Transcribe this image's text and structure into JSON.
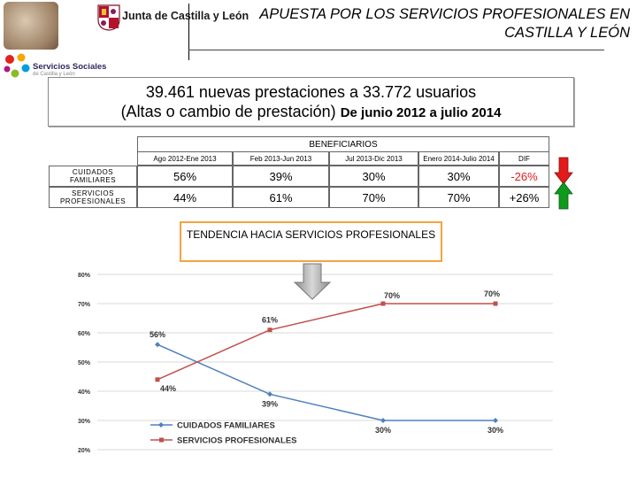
{
  "header": {
    "org_name": "Junta de Castilla y León",
    "title": "APUESTA POR LOS SERVICIOS PROFESIONALES EN CASTILLA Y LEÓN",
    "social_services_label": "Servicios Sociales",
    "social_services_sub": "de Castilla y León"
  },
  "headline": {
    "line1": "39.461 nuevas prestaciones a 33.772 usuarios",
    "line2_main": "(Altas o cambio de prestación) ",
    "line2_period": "De junio 2012 a julio 2014"
  },
  "table": {
    "group_header": "BENEFICIARIOS",
    "columns": [
      "Ago 2012-Ene 2013",
      "Feb 2013-Jun 2013",
      "Jul 2013-Dic 2013",
      "Enero 2014-Julio 2014",
      "DIF"
    ],
    "rows": [
      {
        "label": "CUIDADOS FAMILIARES",
        "values": [
          "56%",
          "39%",
          "30%",
          "30%",
          "-26%"
        ]
      },
      {
        "label": "SERVICIOS PROFESIONALES",
        "values": [
          "44%",
          "61%",
          "70%",
          "70%",
          "+26%"
        ]
      }
    ]
  },
  "trend_box": {
    "text": "TENDENCIA  HACIA SERVICIOS PROFESIONALES"
  },
  "colors": {
    "series1": "#4f81bd",
    "series2": "#c0504d",
    "arrow_down": "#e21a1a",
    "arrow_up": "#109a1c",
    "trend_border": "#f5a340"
  },
  "chart_data": {
    "type": "line",
    "x": [
      1,
      2,
      3,
      4
    ],
    "ylim": [
      20,
      80
    ],
    "yticks": [
      "20%",
      "30%",
      "40%",
      "50%",
      "60%",
      "70%",
      "80%"
    ],
    "series": [
      {
        "name": "CUIDADOS FAMILIARES",
        "values": [
          56,
          39,
          30,
          30
        ],
        "labels": [
          "56%",
          "39%",
          "30%",
          "30%"
        ],
        "color": "#4f81bd"
      },
      {
        "name": "SERVICIOS PROFESIONALES",
        "values": [
          44,
          61,
          70,
          70
        ],
        "labels": [
          "44%",
          "61%",
          "70%",
          "70%"
        ],
        "color": "#c0504d"
      }
    ],
    "legend": "bottom-left",
    "grid": true
  }
}
